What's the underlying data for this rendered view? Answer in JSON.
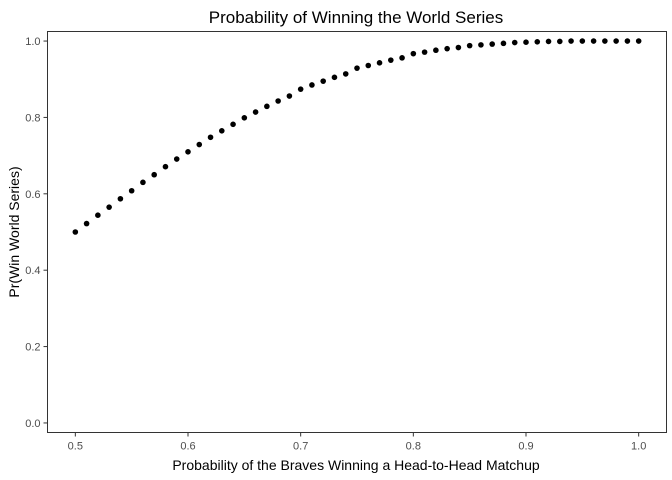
{
  "chart_data": {
    "type": "scatter",
    "title": "Probability of Winning the World Series",
    "xlabel": "Probability of the Braves Winning a Head-to-Head Matchup",
    "ylabel": "Pr(Win World Series)",
    "xlim": [
      0.4753,
      1.0247
    ],
    "ylim": [
      -0.025,
      1.025
    ],
    "x_ticks": [
      0.5,
      0.6,
      0.7,
      0.8,
      0.9,
      1.0
    ],
    "x_tick_labels": [
      "0.5",
      "0.6",
      "0.7",
      "0.8",
      "0.9",
      "1.0"
    ],
    "y_ticks": [
      0.0,
      0.2,
      0.4,
      0.6,
      0.8,
      1.0
    ],
    "y_tick_labels": [
      "0.0",
      "0.2",
      "0.4",
      "0.6",
      "0.8",
      "1.0"
    ],
    "grid": false,
    "point_color": "#000000",
    "x": [
      0.5,
      0.51,
      0.52,
      0.53,
      0.54,
      0.55,
      0.56,
      0.57,
      0.58,
      0.59,
      0.6,
      0.61,
      0.62,
      0.63,
      0.64,
      0.65,
      0.66,
      0.67,
      0.68,
      0.69,
      0.7,
      0.71,
      0.72,
      0.73,
      0.74,
      0.75,
      0.76,
      0.77,
      0.78,
      0.79,
      0.8,
      0.81,
      0.82,
      0.83,
      0.84,
      0.85,
      0.86,
      0.87,
      0.88,
      0.89,
      0.9,
      0.91,
      0.92,
      0.93,
      0.94,
      0.95,
      0.96,
      0.97,
      0.98,
      0.99,
      1.0
    ],
    "y": [
      0.5,
      0.522,
      0.544,
      0.565,
      0.587,
      0.608,
      0.63,
      0.65,
      0.671,
      0.691,
      0.71,
      0.729,
      0.748,
      0.765,
      0.782,
      0.799,
      0.814,
      0.829,
      0.843,
      0.856,
      0.874,
      0.885,
      0.895,
      0.905,
      0.914,
      0.929,
      0.936,
      0.943,
      0.95,
      0.956,
      0.967,
      0.971,
      0.976,
      0.98,
      0.983,
      0.988,
      0.99,
      0.992,
      0.994,
      0.996,
      0.997,
      0.998,
      0.999,
      0.999,
      1.0,
      1.0,
      1.0,
      1.0,
      1.0,
      1.0,
      1.0
    ]
  }
}
